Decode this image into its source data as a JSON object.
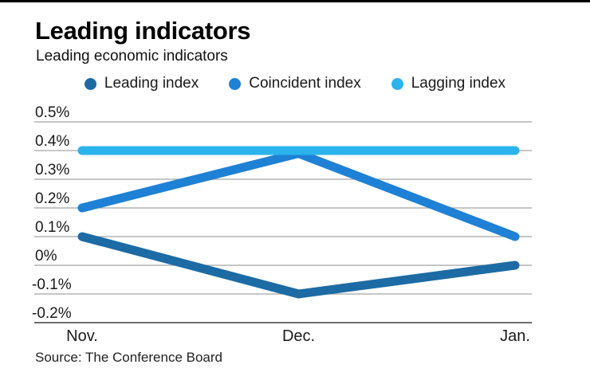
{
  "header": {
    "title": "Leading indicators",
    "subtitle": "Leading economic indicators"
  },
  "source": "Source: The Conference Board",
  "chart_data": {
    "type": "line",
    "title": "Leading indicators",
    "subtitle": "Leading economic indicators",
    "categories": [
      "Nov.",
      "Dec.",
      "Jan."
    ],
    "series": [
      {
        "name": "Leading index",
        "color": "#1c6ba4",
        "values": [
          0.1,
          -0.1,
          0.0
        ]
      },
      {
        "name": "Coincident index",
        "color": "#1e81d5",
        "values": [
          0.2,
          0.39,
          0.1
        ]
      },
      {
        "name": "Lagging index",
        "color": "#2bb3ec",
        "values": [
          0.4,
          0.4,
          0.4
        ]
      }
    ],
    "yticks": [
      {
        "value": 0.5,
        "label": "0.5%"
      },
      {
        "value": 0.4,
        "label": "0.4%"
      },
      {
        "value": 0.3,
        "label": "0.3%"
      },
      {
        "value": 0.2,
        "label": "0.2%"
      },
      {
        "value": 0.1,
        "label": "0.1%"
      },
      {
        "value": 0.0,
        "label": "0%"
      },
      {
        "value": -0.1,
        "label": "-0.1%"
      },
      {
        "value": -0.2,
        "label": "-0.2%"
      }
    ],
    "unit": "%",
    "ylim": [
      -0.2,
      0.5
    ],
    "grid": true,
    "legend_position": "top",
    "xlabel": "",
    "ylabel": "",
    "gridline_color": "#a3a3a3",
    "axisline_color": "#6e6e6e",
    "text_color": "#1a1a1a"
  }
}
